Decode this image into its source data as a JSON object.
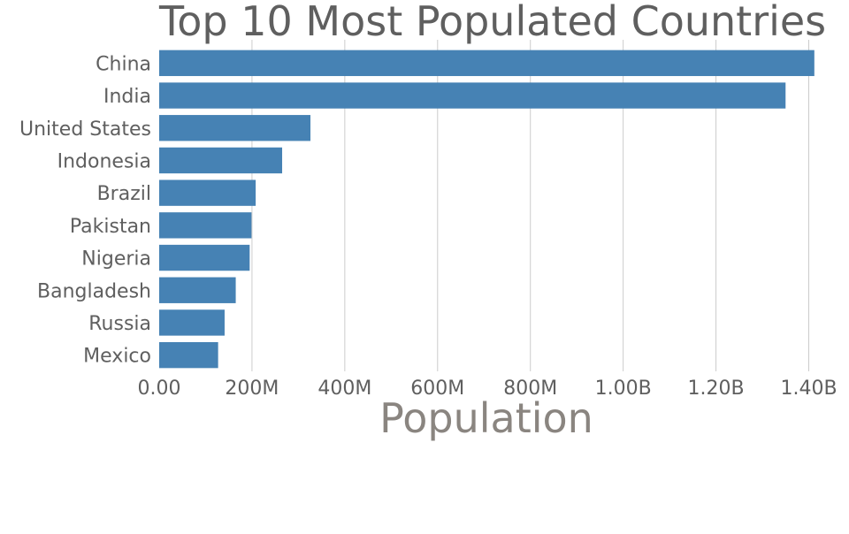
{
  "chart_data": {
    "type": "bar",
    "orientation": "horizontal",
    "title": "Top 10 Most Populated Countries",
    "xlabel": "Population",
    "ylabel": "",
    "xlim": [
      0,
      1420000000
    ],
    "grid": true,
    "categories": [
      "China",
      "India",
      "United States",
      "Indonesia",
      "Brazil",
      "Pakistan",
      "Nigeria",
      "Bangladesh",
      "Russia",
      "Mexico"
    ],
    "values": [
      1412000000,
      1350000000,
      326000000,
      265000000,
      208000000,
      199000000,
      195000000,
      165000000,
      141000000,
      127000000
    ],
    "x_ticks": [
      {
        "value": 0,
        "label": "0.00"
      },
      {
        "value": 200000000,
        "label": "200M"
      },
      {
        "value": 400000000,
        "label": "400M"
      },
      {
        "value": 600000000,
        "label": "600M"
      },
      {
        "value": 800000000,
        "label": "800M"
      },
      {
        "value": 1000000000,
        "label": "1.00B"
      },
      {
        "value": 1200000000,
        "label": "1.20B"
      },
      {
        "value": 1400000000,
        "label": "1.40B"
      }
    ],
    "colors": {
      "bar": "#4682b4",
      "grid": "#cccccc",
      "title": "#5f5f5f",
      "tick_label": "#5f5f5f",
      "axis_title": "#8a8580"
    }
  }
}
